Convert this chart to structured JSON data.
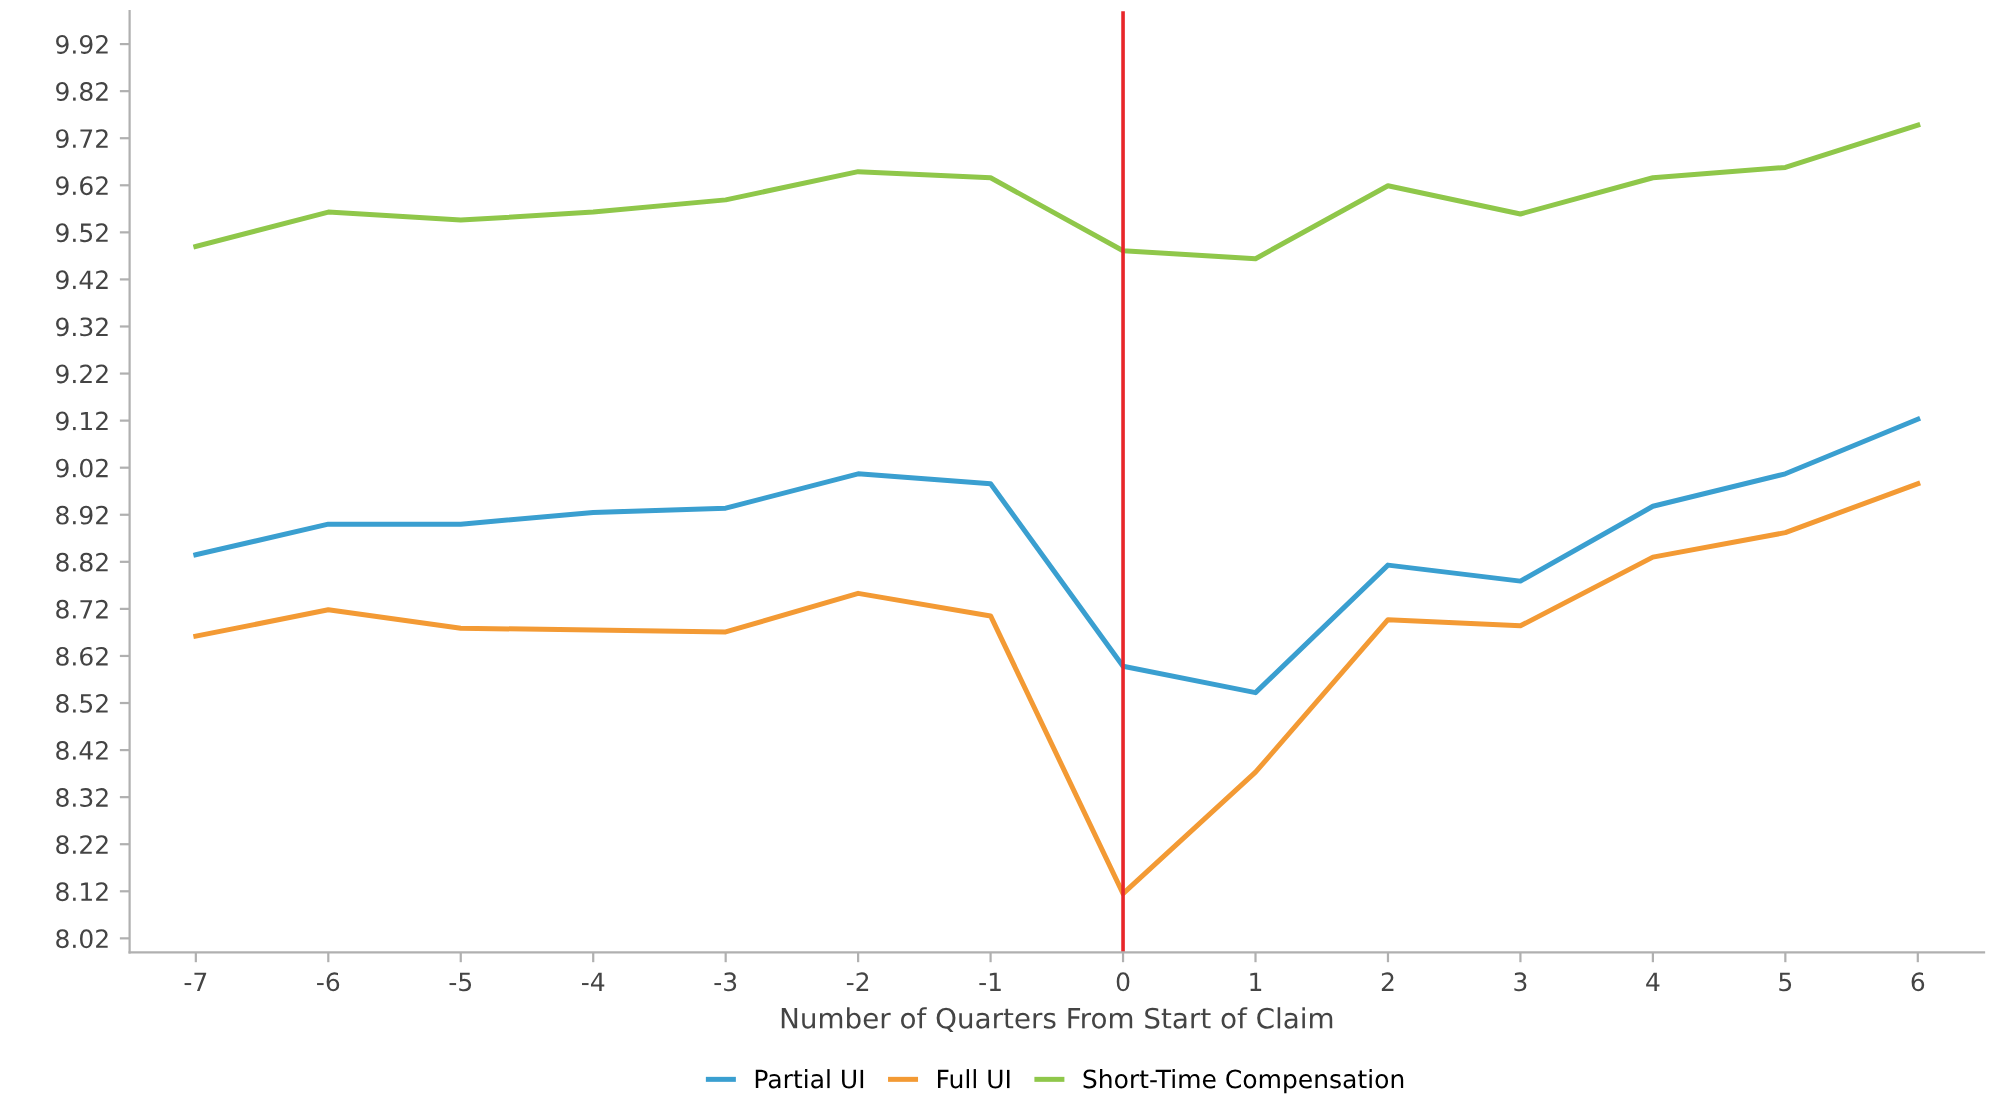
{
  "chart_data": {
    "type": "line",
    "xlabel": "Number of Quarters From Start of Claim",
    "x": [
      -7,
      -6,
      -5,
      -4,
      -3,
      -2,
      -1,
      0,
      1,
      2,
      3,
      4,
      5,
      6
    ],
    "series": [
      {
        "name": "Partial UI",
        "color": "#3a9fd0",
        "values": [
          8.835,
          8.9,
          8.9,
          8.925,
          8.934,
          9.007,
          8.986,
          8.598,
          8.542,
          8.813,
          8.779,
          8.938,
          9.007,
          9.123
        ]
      },
      {
        "name": "Full UI",
        "color": "#f39a34",
        "values": [
          8.662,
          8.718,
          8.679,
          8.675,
          8.671,
          8.753,
          8.705,
          8.115,
          8.373,
          8.697,
          8.684,
          8.83,
          8.882,
          8.986
        ]
      },
      {
        "name": "Short-Time Compensation",
        "color": "#8fc74a",
        "values": [
          9.49,
          9.563,
          9.546,
          9.563,
          9.589,
          9.649,
          9.636,
          9.481,
          9.464,
          9.619,
          9.559,
          9.636,
          9.658,
          9.748
        ]
      }
    ],
    "xlim": [
      -7.5,
      6.5
    ],
    "xticks": [
      -7,
      -6,
      -5,
      -4,
      -3,
      -2,
      -1,
      0,
      1,
      2,
      3,
      4,
      5,
      6
    ],
    "ylim": [
      7.99,
      9.99
    ],
    "yticks": [
      8.02,
      8.12,
      8.22,
      8.32,
      8.42,
      8.52,
      8.62,
      8.72,
      8.82,
      8.92,
      9.02,
      9.12,
      9.22,
      9.32,
      9.42,
      9.52,
      9.62,
      9.72,
      9.82,
      9.92
    ],
    "ref_lines": [
      {
        "axis": "x",
        "value": 0,
        "color": "#e8262a"
      }
    ],
    "grid": false,
    "legend": "bottom",
    "marker": "none",
    "line_style": "solid"
  }
}
